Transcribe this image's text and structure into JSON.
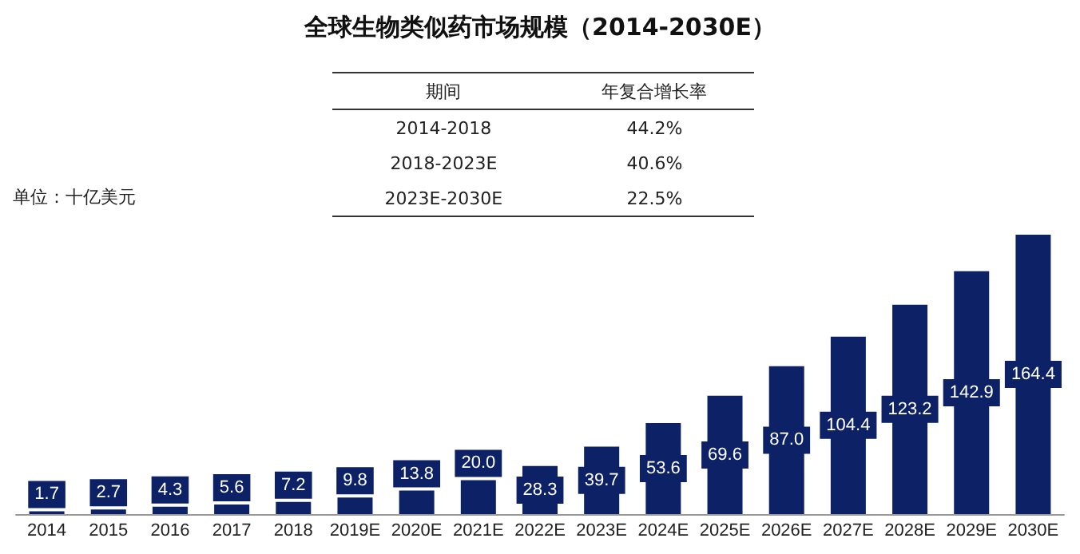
{
  "chart_data": {
    "type": "bar",
    "title": "全球生物类似药市场规模（2014-2030E）",
    "ylabel": "单位：十亿美元",
    "categories": [
      "2014",
      "2015",
      "2016",
      "2017",
      "2018",
      "2019E",
      "2020E",
      "2021E",
      "2022E",
      "2023E",
      "2024E",
      "2025E",
      "2026E",
      "2027E",
      "2028E",
      "2029E",
      "2030E"
    ],
    "values": [
      1.7,
      2.7,
      4.3,
      5.6,
      7.2,
      9.8,
      13.8,
      20.0,
      28.3,
      39.7,
      53.6,
      69.6,
      87.0,
      104.4,
      123.2,
      142.9,
      164.4
    ],
    "value_labels": [
      "1.7",
      "2.7",
      "4.3",
      "5.6",
      "7.2",
      "9.8",
      "13.8",
      "20.0",
      "28.3",
      "39.7",
      "53.6",
      "69.6",
      "87.0",
      "104.4",
      "123.2",
      "142.9",
      "164.4"
    ],
    "color": "#0d2266",
    "annotations": [
      "期间",
      "年复合增长率",
      "2014-2018",
      "44.2%",
      "2018-2023E",
      "40.6%",
      "2023E-2030E",
      "22.5%"
    ]
  }
}
